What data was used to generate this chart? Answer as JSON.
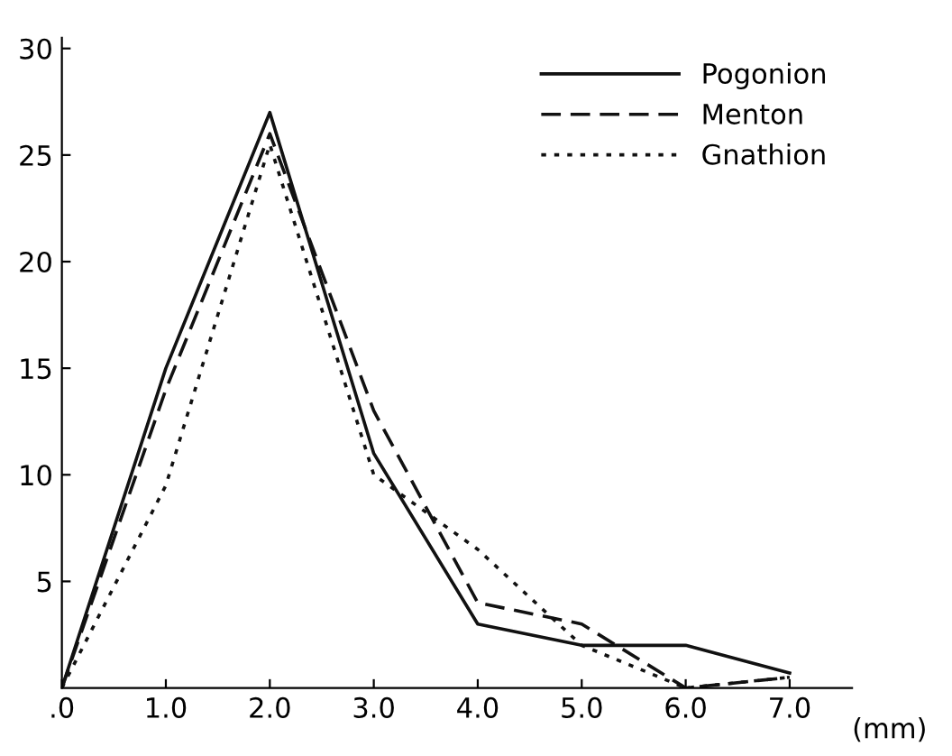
{
  "chart_data": {
    "type": "line",
    "x": [
      0,
      1,
      2,
      3,
      4,
      5,
      6,
      7
    ],
    "xlabel": "(mm)",
    "series": [
      {
        "name": "Pogonion",
        "color": "#111111",
        "line_style": "solid",
        "values": [
          0,
          15,
          27,
          11,
          3,
          2,
          2,
          0.7
        ]
      },
      {
        "name": "Menton",
        "color": "#111111",
        "line_style": "dashed",
        "values": [
          0,
          14,
          26,
          13,
          4,
          3,
          0,
          0.5
        ]
      },
      {
        "name": "Gnathion",
        "color": "#111111",
        "line_style": "dotted",
        "values": [
          0,
          9.5,
          25.5,
          10,
          6.5,
          2,
          0,
          0.5
        ]
      }
    ],
    "xlim": [
      0,
      7.6
    ],
    "xticks": [
      {
        "value": 0,
        "label": ".0"
      },
      {
        "value": 1,
        "label": "1.0"
      },
      {
        "value": 2,
        "label": "2.0"
      },
      {
        "value": 3,
        "label": "3.0"
      },
      {
        "value": 4,
        "label": "4.0"
      },
      {
        "value": 5,
        "label": "5.0"
      },
      {
        "value": 6,
        "label": "6.0"
      },
      {
        "value": 7,
        "label": "7.0"
      }
    ],
    "ylim": [
      0,
      30.5
    ],
    "yticks": [
      5,
      10,
      15,
      20,
      25,
      30
    ],
    "grid": false,
    "legend": "top right",
    "marker": "none"
  }
}
